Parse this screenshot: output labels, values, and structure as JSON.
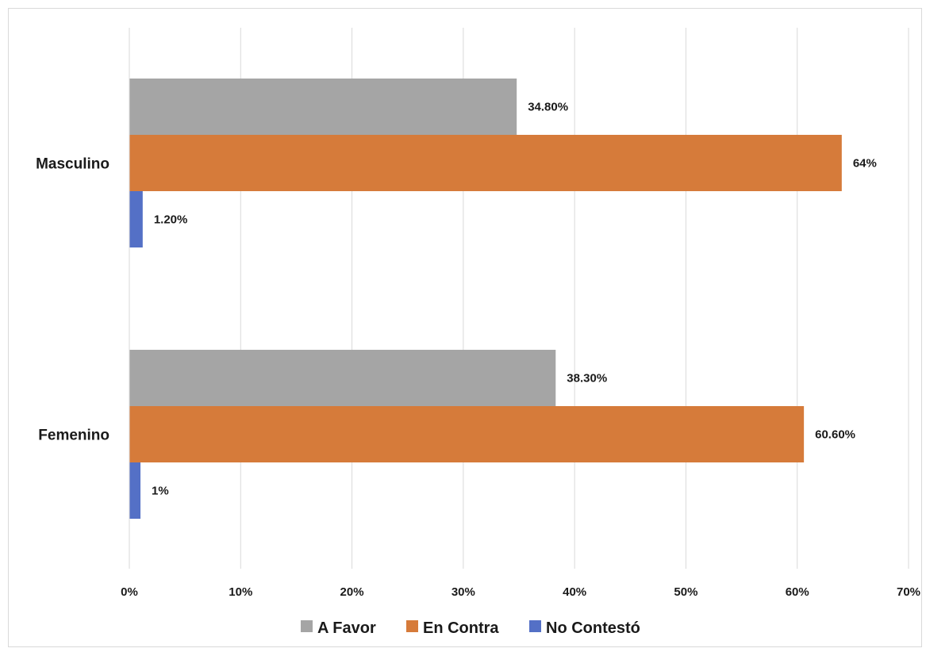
{
  "chart_data": {
    "type": "bar",
    "orientation": "horizontal",
    "categories": [
      "Masculino",
      "Femenino"
    ],
    "series": [
      {
        "name": "A Favor",
        "values": [
          34.8,
          38.3
        ],
        "labels": [
          "34.80%",
          "38.30%"
        ],
        "color": "#a5a5a5"
      },
      {
        "name": "En Contra",
        "values": [
          64.0,
          60.6
        ],
        "labels": [
          "64%",
          "60.60%"
        ],
        "color": "#d67b3a"
      },
      {
        "name": "No Contestó",
        "values": [
          1.2,
          1.0
        ],
        "labels": [
          "1.20%",
          "1%"
        ],
        "color": "#5470c6"
      }
    ],
    "xlim": [
      0,
      70
    ],
    "xticks": [
      "0%",
      "10%",
      "20%",
      "30%",
      "40%",
      "50%",
      "60%",
      "70%"
    ],
    "grid": true,
    "legend_position": "bottom"
  }
}
